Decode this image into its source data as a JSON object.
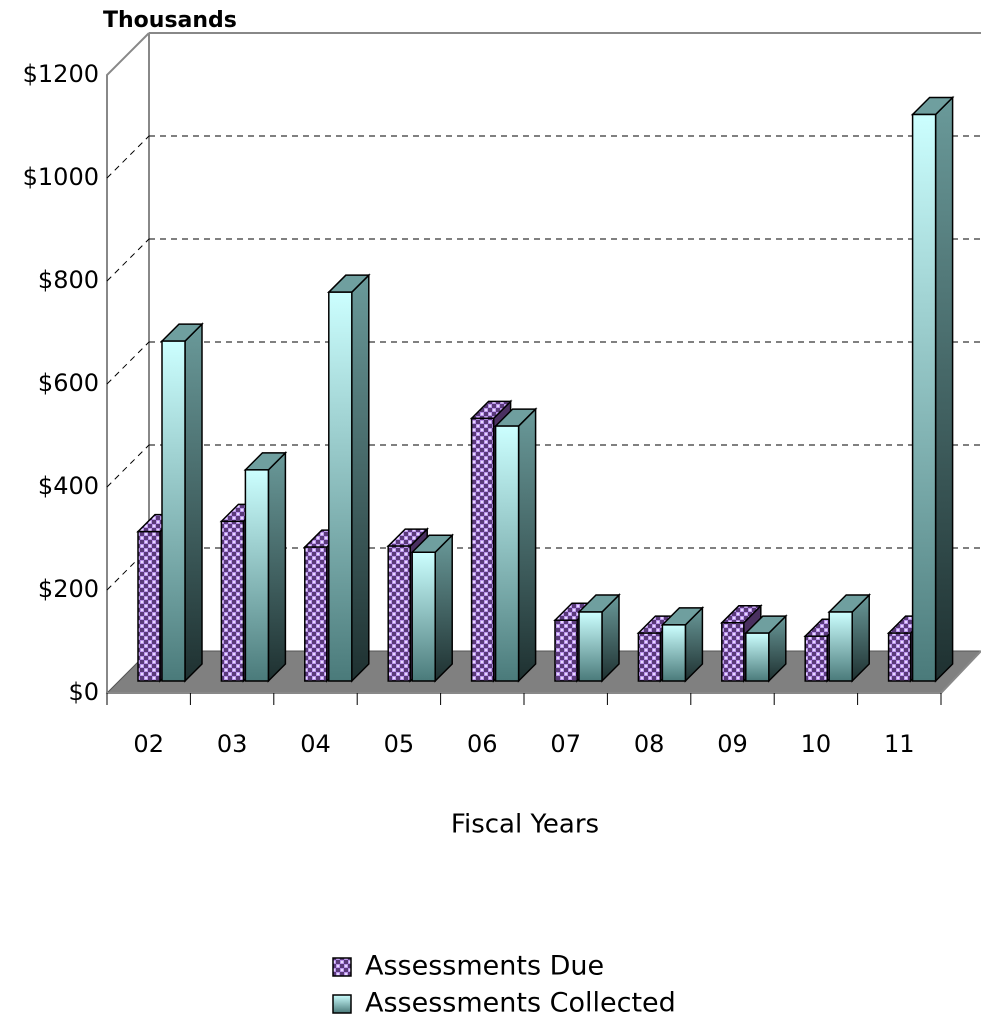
{
  "chart_data": {
    "type": "bar3d",
    "title": "Thousands",
    "x_label": "Fiscal Years",
    "categories": [
      "02",
      "03",
      "04",
      "05",
      "06",
      "07",
      "08",
      "09",
      "10",
      "11"
    ],
    "series": [
      {
        "name": "Assessments Due",
        "color": "#b58de8",
        "values": [
          290,
          310,
          260,
          262,
          510,
          118,
          93,
          113,
          87,
          93
        ]
      },
      {
        "name": "Assessments Collected",
        "color": "#ccffff",
        "values": [
          660,
          410,
          755,
          250,
          495,
          134,
          109,
          93,
          134,
          1100
        ]
      }
    ],
    "ylim": [
      0,
      1200
    ],
    "yticks": [
      {
        "value": 0,
        "label": "$0"
      },
      {
        "value": 200,
        "label": "$200"
      },
      {
        "value": 400,
        "label": "$400"
      },
      {
        "value": 600,
        "label": "$600"
      },
      {
        "value": 800,
        "label": "$800"
      },
      {
        "value": 1000,
        "label": "$1000"
      },
      {
        "value": 1200,
        "label": "$1200"
      }
    ],
    "grid": true
  }
}
